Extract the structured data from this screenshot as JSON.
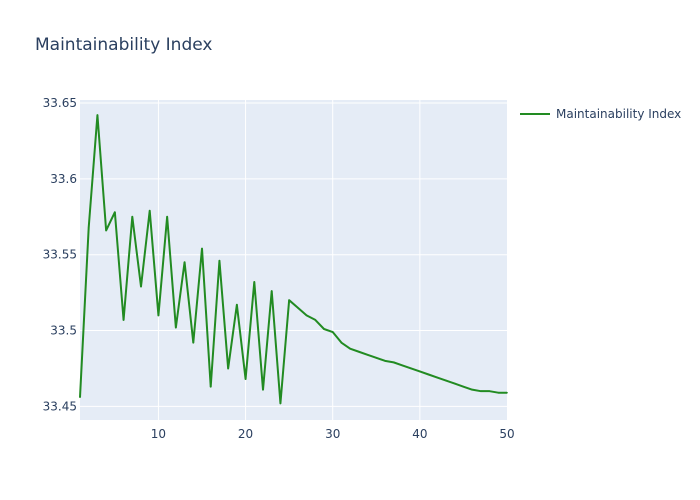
{
  "chart_data": {
    "type": "line",
    "title": "Maintainability Index",
    "xlabel": "",
    "ylabel": "",
    "xlim": [
      1,
      50
    ],
    "ylim": [
      33.441,
      33.652
    ],
    "x_ticks": [
      10,
      20,
      30,
      40,
      50
    ],
    "y_ticks": [
      33.45,
      33.5,
      33.55,
      33.6,
      33.65
    ],
    "x_tick_labels": [
      "10",
      "20",
      "30",
      "40",
      "50"
    ],
    "y_tick_labels": [
      "33.45",
      "33.5",
      "33.55",
      "33.6",
      "33.65"
    ],
    "grid": true,
    "legend_position": "top-right",
    "colors": {
      "plot_bg": "#e5ecf6",
      "grid": "#ffffff",
      "text": "#2a3f5f"
    },
    "series": [
      {
        "name": "Maintainability Index",
        "color": "#228b22",
        "x": [
          1,
          2,
          3,
          4,
          5,
          6,
          7,
          8,
          9,
          10,
          11,
          12,
          13,
          14,
          15,
          16,
          17,
          18,
          19,
          20,
          21,
          22,
          23,
          24,
          25,
          26,
          27,
          28,
          29,
          30,
          31,
          32,
          33,
          34,
          35,
          36,
          37,
          38,
          39,
          40,
          41,
          42,
          43,
          44,
          45,
          46,
          47,
          48,
          49,
          50
        ],
        "values": [
          33.456,
          33.568,
          33.642,
          33.566,
          33.578,
          33.507,
          33.575,
          33.529,
          33.579,
          33.51,
          33.575,
          33.502,
          33.545,
          33.492,
          33.554,
          33.463,
          33.546,
          33.475,
          33.517,
          33.468,
          33.532,
          33.461,
          33.526,
          33.452,
          33.52,
          33.515,
          33.51,
          33.507,
          33.501,
          33.499,
          33.492,
          33.488,
          33.486,
          33.484,
          33.482,
          33.48,
          33.479,
          33.477,
          33.475,
          33.473,
          33.471,
          33.469,
          33.467,
          33.465,
          33.463,
          33.461,
          33.46,
          33.46,
          33.459,
          33.459
        ]
      }
    ]
  }
}
